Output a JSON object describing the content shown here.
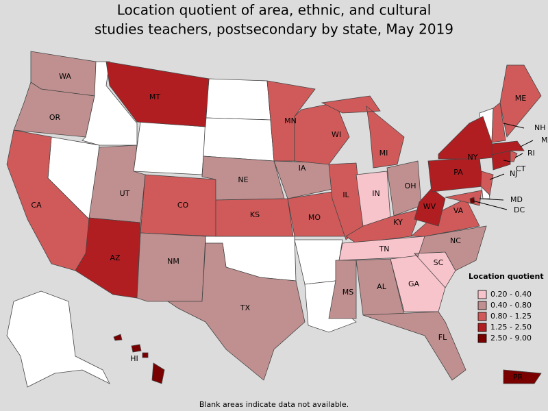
{
  "title": [
    "Location quotient of area, ethnic, and cultural",
    "studies teachers, postsecondary by state, May 2019"
  ],
  "legend": {
    "title": "Location quotient",
    "items": [
      {
        "label": "0.20 - 0.40",
        "color": "#f8c4cc"
      },
      {
        "label": "0.40 - 0.80",
        "color": "#c09090"
      },
      {
        "label": "0.80 - 1.25",
        "color": "#d05a5a"
      },
      {
        "label": "1.25 - 2.50",
        "color": "#b01e22"
      },
      {
        "label": "2.50 - 9.00",
        "color": "#7a0000"
      }
    ]
  },
  "states": [
    {
      "label": "WA",
      "color": "#c09090"
    },
    {
      "label": "OR",
      "color": "#c09090"
    },
    {
      "label": "CA",
      "color": "#d05a5a"
    },
    {
      "label": "MT",
      "color": "#b01e22"
    },
    {
      "label": "UT",
      "color": "#c09090"
    },
    {
      "label": "AZ",
      "color": "#b01e22"
    },
    {
      "label": "CO",
      "color": "#d05a5a"
    },
    {
      "label": "NM",
      "color": "#c09090"
    },
    {
      "label": "NE",
      "color": "#c09090"
    },
    {
      "label": "KS",
      "color": "#d05a5a"
    },
    {
      "label": "TX",
      "color": "#c09090"
    },
    {
      "label": "MN",
      "color": "#d05a5a"
    },
    {
      "label": "IA",
      "color": "#c09090"
    },
    {
      "label": "MO",
      "color": "#d05a5a"
    },
    {
      "label": "WI",
      "color": "#d05a5a"
    },
    {
      "label": "IL",
      "color": "#d05a5a"
    },
    {
      "label": "MI",
      "color": "#d05a5a"
    },
    {
      "label": "IN",
      "color": "#f8c4cc"
    },
    {
      "label": "OH",
      "color": "#c09090"
    },
    {
      "label": "KY",
      "color": "#d05a5a"
    },
    {
      "label": "TN",
      "color": "#f8c4cc"
    },
    {
      "label": "MS",
      "color": "#c09090"
    },
    {
      "label": "AL",
      "color": "#c09090"
    },
    {
      "label": "GA",
      "color": "#f8c4cc"
    },
    {
      "label": "SC",
      "color": "#f8c4cc"
    },
    {
      "label": "FL",
      "color": "#c09090"
    },
    {
      "label": "NC",
      "color": "#c09090"
    },
    {
      "label": "VA",
      "color": "#d05a5a"
    },
    {
      "label": "WV",
      "color": "#b01e22"
    },
    {
      "label": "PA",
      "color": "#b01e22"
    },
    {
      "label": "NY",
      "color": "#b01e22"
    },
    {
      "label": "ME",
      "color": "#d05a5a"
    },
    {
      "label": "NH",
      "color": "#d05a5a"
    },
    {
      "label": "MA",
      "color": "#b01e22"
    },
    {
      "label": "CT",
      "color": "#b01e22"
    },
    {
      "label": "RI",
      "color": "#d05a5a"
    },
    {
      "label": "NJ",
      "color": "#d05a5a"
    },
    {
      "label": "MD",
      "color": "#d05a5a"
    },
    {
      "label": "DC",
      "color": "#7a0000"
    },
    {
      "label": "HI",
      "color": "#7a0000"
    },
    {
      "label": "PR",
      "color": "#7a0000"
    }
  ],
  "note": "Blank areas indicate data not available."
}
